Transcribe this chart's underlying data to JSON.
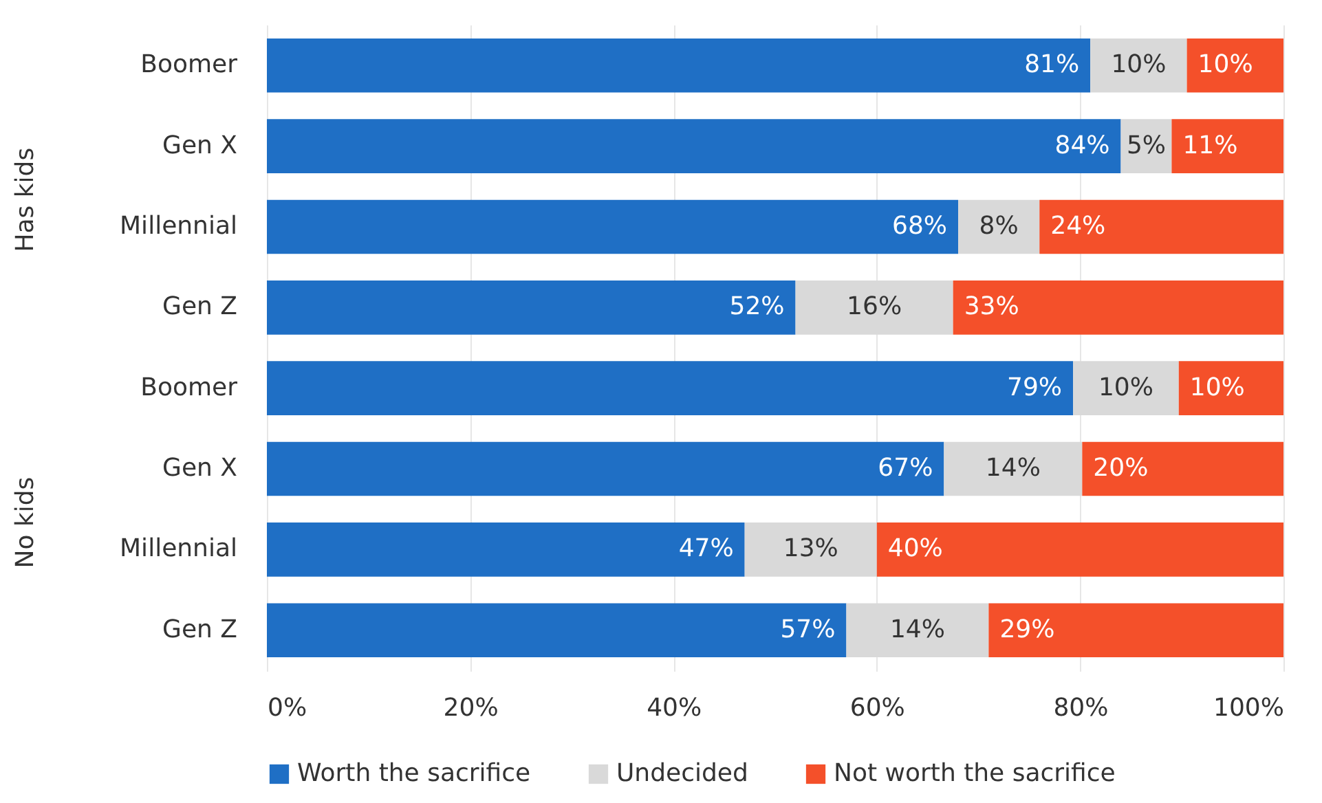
{
  "chart_data": {
    "type": "bar",
    "orientation": "horizontal",
    "stacked": true,
    "grid": "x",
    "legend": "bottom",
    "categories": [
      "Boomer",
      "Gen X",
      "Millennial",
      "Gen Z",
      "Boomer",
      "Gen X",
      "Millennial",
      "Gen Z"
    ],
    "annotations": [
      "Has kids",
      "No kids"
    ],
    "xlim": [
      0,
      100
    ],
    "xticks": [
      {
        "value": 0,
        "label": "0%"
      },
      {
        "value": 20,
        "label": "20%"
      },
      {
        "value": 40,
        "label": "40%"
      },
      {
        "value": 60,
        "label": "60%"
      },
      {
        "value": 80,
        "label": "80%"
      },
      {
        "value": 100,
        "label": "100%"
      }
    ],
    "series": [
      {
        "name": "Worth the sacrifice",
        "color": "#1f6fc5",
        "values": [
          81,
          84,
          68,
          52,
          79.3,
          66.6,
          47,
          57
        ],
        "value_labels": [
          "81%",
          "84%",
          "68%",
          "52%",
          "79%",
          "67%",
          "47%",
          "57%"
        ]
      },
      {
        "name": "Undecided",
        "color": "#d9d9d9",
        "values": [
          9.5,
          5,
          8,
          15.5,
          10.4,
          13.6,
          13,
          14
        ],
        "value_labels": [
          "10%",
          "5%",
          "8%",
          "16%",
          "10%",
          "14%",
          "13%",
          "14%"
        ]
      },
      {
        "name": "Not worth the sacrifice",
        "color": "#f4502a",
        "values": [
          9.5,
          11,
          24,
          32.5,
          10.3,
          19.8,
          40,
          29
        ],
        "value_labels": [
          "10%",
          "11%",
          "24%",
          "33%",
          "10%",
          "20%",
          "40%",
          "29%"
        ]
      }
    ]
  }
}
